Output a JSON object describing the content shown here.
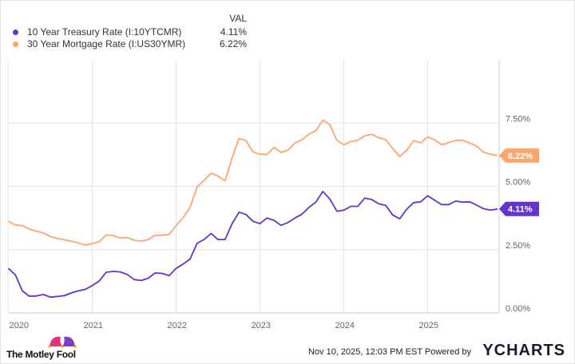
{
  "legend": {
    "header": "VAL"
  },
  "footer": {
    "timestamp": "Nov 10, 2025, 12:03 PM EST Powered by",
    "ycharts_logo": "YCHARTS",
    "motley_fool_logo": "The Motley Fool"
  },
  "chart_data": {
    "type": "line",
    "title": "",
    "x_start": "2020-01",
    "x_frequency": "monthly",
    "x_ticks": [
      "2020",
      "2021",
      "2022",
      "2023",
      "2024",
      "2025"
    ],
    "y_ticks": [
      "0.00%",
      "2.50%",
      "5.00%",
      "7.50%"
    ],
    "ylim": [
      0,
      10
    ],
    "y_axis_side": "right",
    "grid": true,
    "legend_position": "top-left",
    "series": [
      {
        "name": "10 Year Treasury Rate (I:10YTCMR)",
        "color": "#6236c9",
        "last_value": "4.11%",
        "values": [
          1.76,
          1.5,
          0.87,
          0.66,
          0.67,
          0.73,
          0.62,
          0.65,
          0.68,
          0.79,
          0.87,
          0.93,
          1.08,
          1.26,
          1.61,
          1.64,
          1.62,
          1.52,
          1.32,
          1.28,
          1.37,
          1.58,
          1.56,
          1.47,
          1.76,
          1.93,
          2.13,
          2.75,
          2.9,
          3.14,
          2.9,
          2.9,
          3.52,
          3.98,
          3.89,
          3.62,
          3.53,
          3.75,
          3.66,
          3.46,
          3.57,
          3.75,
          3.9,
          4.17,
          4.38,
          4.8,
          4.5,
          4.02,
          4.06,
          4.21,
          4.21,
          4.54,
          4.48,
          4.31,
          4.25,
          3.87,
          3.72,
          4.1,
          4.36,
          4.39,
          4.63,
          4.45,
          4.28,
          4.28,
          4.42,
          4.38,
          4.39,
          4.26,
          4.12,
          4.06,
          4.11
        ]
      },
      {
        "name": "30 Year Mortgage Rate (I:US30YMR)",
        "color": "#ffa66e",
        "last_value": "6.22%",
        "values": [
          3.62,
          3.47,
          3.45,
          3.31,
          3.23,
          3.16,
          3.02,
          2.94,
          2.89,
          2.83,
          2.77,
          2.68,
          2.74,
          2.81,
          3.08,
          3.06,
          2.96,
          2.98,
          2.87,
          2.84,
          2.9,
          3.07,
          3.07,
          3.1,
          3.45,
          3.76,
          4.17,
          4.98,
          5.23,
          5.52,
          5.41,
          5.22,
          6.11,
          6.9,
          6.81,
          6.36,
          6.27,
          6.26,
          6.54,
          6.34,
          6.43,
          6.71,
          6.84,
          7.07,
          7.2,
          7.62,
          7.44,
          6.82,
          6.64,
          6.78,
          6.82,
          7.0,
          7.06,
          6.92,
          6.85,
          6.5,
          6.18,
          6.43,
          6.81,
          6.72,
          6.96,
          6.84,
          6.65,
          6.73,
          6.82,
          6.82,
          6.72,
          6.59,
          6.35,
          6.27,
          6.22
        ]
      }
    ]
  }
}
